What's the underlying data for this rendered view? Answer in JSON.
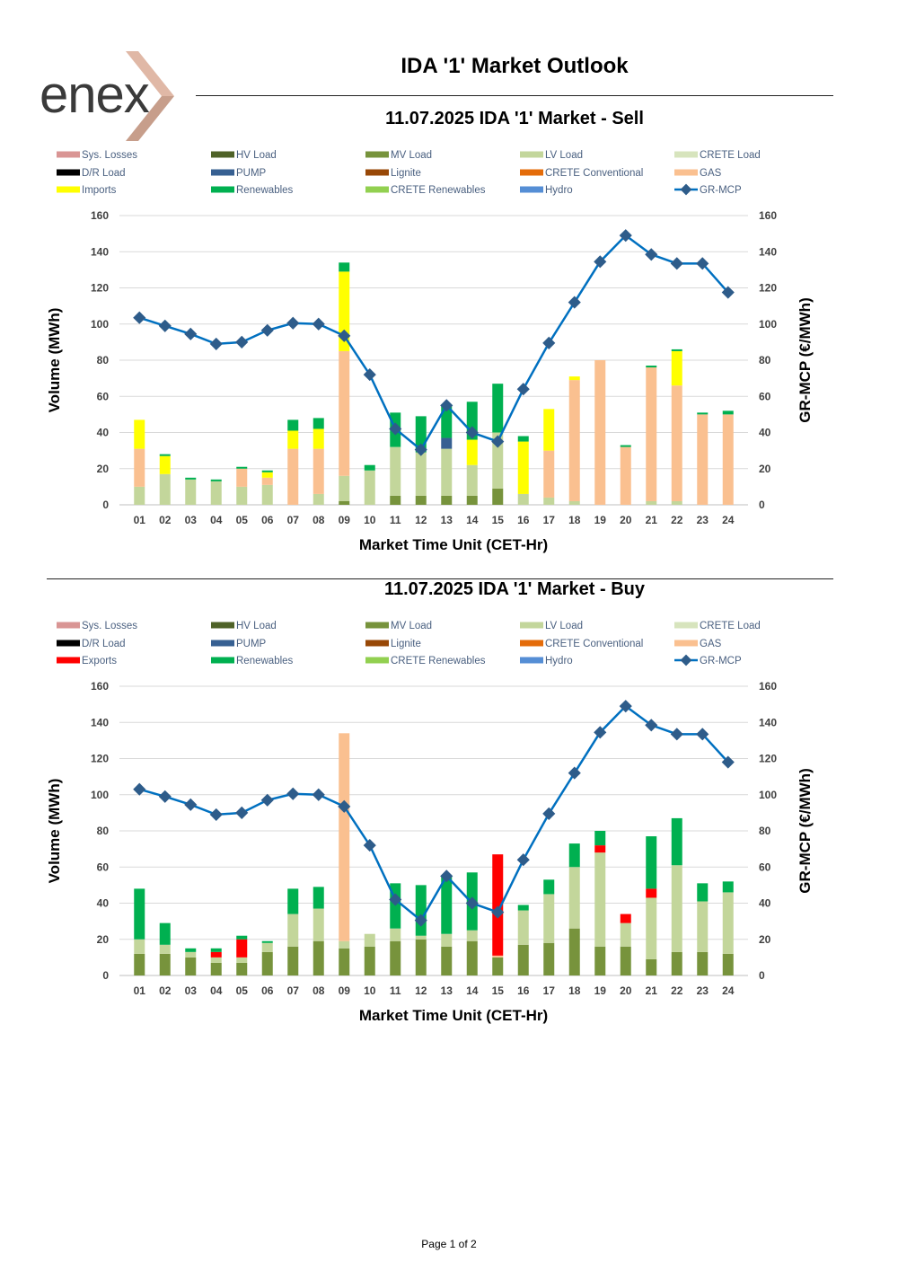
{
  "header": {
    "logo_text": "enex",
    "title": "IDA '1' Market Outlook"
  },
  "footer": {
    "page_label": "Page 1 of 2"
  },
  "chart_data": [
    {
      "id": "sell",
      "type": "bar",
      "stacked": true,
      "title": "11.07.2025  IDA '1' Market - Sell",
      "xlabel": "Market Time Unit (CET-Hr)",
      "ylabel": "Volume (MWh)",
      "y2label": "GR-MCP (€/MWh)",
      "ylim": [
        0,
        160
      ],
      "y2lim": [
        0,
        160
      ],
      "yticks": [
        0,
        20,
        40,
        60,
        80,
        100,
        120,
        140,
        160
      ],
      "grid": true,
      "legend_position": "top",
      "categories": [
        "01",
        "02",
        "03",
        "04",
        "05",
        "06",
        "07",
        "08",
        "09",
        "10",
        "11",
        "12",
        "13",
        "14",
        "15",
        "16",
        "17",
        "18",
        "19",
        "20",
        "21",
        "22",
        "23",
        "24"
      ],
      "legend": [
        {
          "name": "Sys. Losses",
          "color": "#D99594",
          "kind": "bar"
        },
        {
          "name": "HV Load",
          "color": "#4F6228",
          "kind": "bar"
        },
        {
          "name": "MV Load",
          "color": "#77933C",
          "kind": "bar"
        },
        {
          "name": "LV Load",
          "color": "#C3D69B",
          "kind": "bar"
        },
        {
          "name": "CRETE Load",
          "color": "#D7E4BD",
          "kind": "bar"
        },
        {
          "name": "D/R Load",
          "color": "#000000",
          "kind": "bar"
        },
        {
          "name": "PUMP",
          "color": "#376092",
          "kind": "bar"
        },
        {
          "name": "Lignite",
          "color": "#984807",
          "kind": "bar"
        },
        {
          "name": "CRETE Conventional",
          "color": "#E46C0A",
          "kind": "bar"
        },
        {
          "name": "GAS",
          "color": "#FAC090",
          "kind": "bar"
        },
        {
          "name": "Imports",
          "color": "#FFFF00",
          "kind": "bar"
        },
        {
          "name": "Renewables",
          "color": "#00B050",
          "kind": "bar"
        },
        {
          "name": "CRETE Renewables",
          "color": "#92D050",
          "kind": "bar"
        },
        {
          "name": "Hydro",
          "color": "#558ED5",
          "kind": "bar"
        },
        {
          "name": "GR-MCP",
          "color": "#0070C0",
          "kind": "line"
        }
      ],
      "series": [
        {
          "name": "MV Load",
          "values": [
            0,
            0,
            0,
            0,
            0,
            0,
            0,
            0,
            2,
            0,
            5,
            5,
            5,
            5,
            9,
            0,
            0,
            0,
            0,
            0,
            0,
            0,
            0,
            0
          ]
        },
        {
          "name": "LV Load",
          "values": [
            10,
            17,
            14,
            13,
            10,
            11,
            0,
            6,
            14,
            19,
            27,
            24,
            26,
            17,
            31,
            6,
            4,
            2,
            0,
            0,
            2,
            2,
            0,
            0
          ]
        },
        {
          "name": "PUMP",
          "values": [
            0,
            0,
            0,
            0,
            0,
            0,
            0,
            0,
            0,
            0,
            0,
            0,
            6,
            0,
            0,
            0,
            0,
            0,
            0,
            0,
            0,
            0,
            0,
            0
          ]
        },
        {
          "name": "GAS",
          "values": [
            21,
            0,
            0,
            0,
            10,
            4,
            31,
            25,
            69,
            0,
            0,
            0,
            0,
            0,
            0,
            0,
            26,
            67,
            80,
            32,
            74,
            64,
            50,
            50
          ]
        },
        {
          "name": "Imports",
          "values": [
            16,
            10,
            0,
            0,
            0,
            3,
            10,
            11,
            44,
            0,
            0,
            0,
            0,
            14,
            0,
            29,
            23,
            2,
            0,
            0,
            0,
            19,
            0,
            0
          ]
        },
        {
          "name": "Renewables",
          "values": [
            0,
            1,
            1,
            1,
            1,
            1,
            6,
            6,
            5,
            3,
            19,
            20,
            18,
            21,
            27,
            3,
            0,
            0,
            0,
            1,
            1,
            1,
            1,
            2
          ]
        }
      ],
      "line": {
        "name": "GR-MCP",
        "values": [
          103.5,
          99,
          94.5,
          89,
          90,
          96.5,
          100.5,
          100,
          93.5,
          72,
          42,
          30.5,
          55,
          40,
          35,
          64,
          89.5,
          112,
          134.5,
          149,
          138.5,
          133.5,
          133.5,
          117.5
        ]
      }
    },
    {
      "id": "buy",
      "type": "bar",
      "stacked": true,
      "title": "11.07.2025  IDA '1' Market - Buy",
      "xlabel": "Market Time Unit (CET-Hr)",
      "ylabel": "Volume (MWh)",
      "y2label": "GR-MCP (€/MWh)",
      "ylim": [
        0,
        160
      ],
      "y2lim": [
        0,
        160
      ],
      "yticks": [
        0,
        20,
        40,
        60,
        80,
        100,
        120,
        140,
        160
      ],
      "grid": true,
      "legend_position": "top",
      "categories": [
        "01",
        "02",
        "03",
        "04",
        "05",
        "06",
        "07",
        "08",
        "09",
        "10",
        "11",
        "12",
        "13",
        "14",
        "15",
        "16",
        "17",
        "18",
        "19",
        "20",
        "21",
        "22",
        "23",
        "24"
      ],
      "legend": [
        {
          "name": "Sys. Losses",
          "color": "#D99594",
          "kind": "bar"
        },
        {
          "name": "HV Load",
          "color": "#4F6228",
          "kind": "bar"
        },
        {
          "name": "MV Load",
          "color": "#77933C",
          "kind": "bar"
        },
        {
          "name": "LV Load",
          "color": "#C3D69B",
          "kind": "bar"
        },
        {
          "name": "CRETE Load",
          "color": "#D7E4BD",
          "kind": "bar"
        },
        {
          "name": "D/R Load",
          "color": "#000000",
          "kind": "bar"
        },
        {
          "name": "PUMP",
          "color": "#376092",
          "kind": "bar"
        },
        {
          "name": "Lignite",
          "color": "#984807",
          "kind": "bar"
        },
        {
          "name": "CRETE Conventional",
          "color": "#E46C0A",
          "kind": "bar"
        },
        {
          "name": "GAS",
          "color": "#FAC090",
          "kind": "bar"
        },
        {
          "name": "Exports",
          "color": "#FF0000",
          "kind": "bar"
        },
        {
          "name": "Renewables",
          "color": "#00B050",
          "kind": "bar"
        },
        {
          "name": "CRETE Renewables",
          "color": "#92D050",
          "kind": "bar"
        },
        {
          "name": "Hydro",
          "color": "#558ED5",
          "kind": "bar"
        },
        {
          "name": "GR-MCP",
          "color": "#0070C0",
          "kind": "line"
        }
      ],
      "series": [
        {
          "name": "MV Load",
          "values": [
            12,
            12,
            10,
            7,
            7,
            13,
            16,
            19,
            15,
            16,
            19,
            20,
            16,
            19,
            10,
            17,
            18,
            26,
            16,
            16,
            9,
            13,
            13,
            12
          ]
        },
        {
          "name": "LV Load",
          "values": [
            8,
            5,
            3,
            3,
            3,
            5,
            18,
            18,
            4,
            7,
            7,
            2,
            7,
            6,
            0,
            19,
            27,
            34,
            52,
            13,
            34,
            48,
            28,
            34
          ]
        },
        {
          "name": "GAS",
          "values": [
            0,
            0,
            0,
            0,
            0,
            0,
            0,
            0,
            115,
            0,
            0,
            0,
            0,
            0,
            1,
            0,
            0,
            0,
            0,
            0,
            0,
            0,
            0,
            0
          ]
        },
        {
          "name": "Exports",
          "values": [
            0,
            0,
            0,
            3,
            10,
            0,
            0,
            0,
            0,
            0,
            0,
            0,
            0,
            0,
            56,
            0,
            0,
            0,
            4,
            5,
            5,
            0,
            0,
            0
          ]
        },
        {
          "name": "Renewables",
          "values": [
            28,
            12,
            2,
            2,
            2,
            1,
            14,
            12,
            0,
            0,
            25,
            28,
            32,
            32,
            0,
            3,
            8,
            13,
            8,
            0,
            29,
            26,
            10,
            6
          ]
        }
      ],
      "line": {
        "name": "GR-MCP",
        "values": [
          103,
          99,
          94.5,
          89,
          90,
          97,
          100.5,
          100,
          93.5,
          72,
          42,
          30.5,
          55,
          40,
          35,
          64,
          89.5,
          112,
          134.5,
          149,
          138.5,
          133.5,
          133.5,
          118
        ]
      }
    }
  ]
}
